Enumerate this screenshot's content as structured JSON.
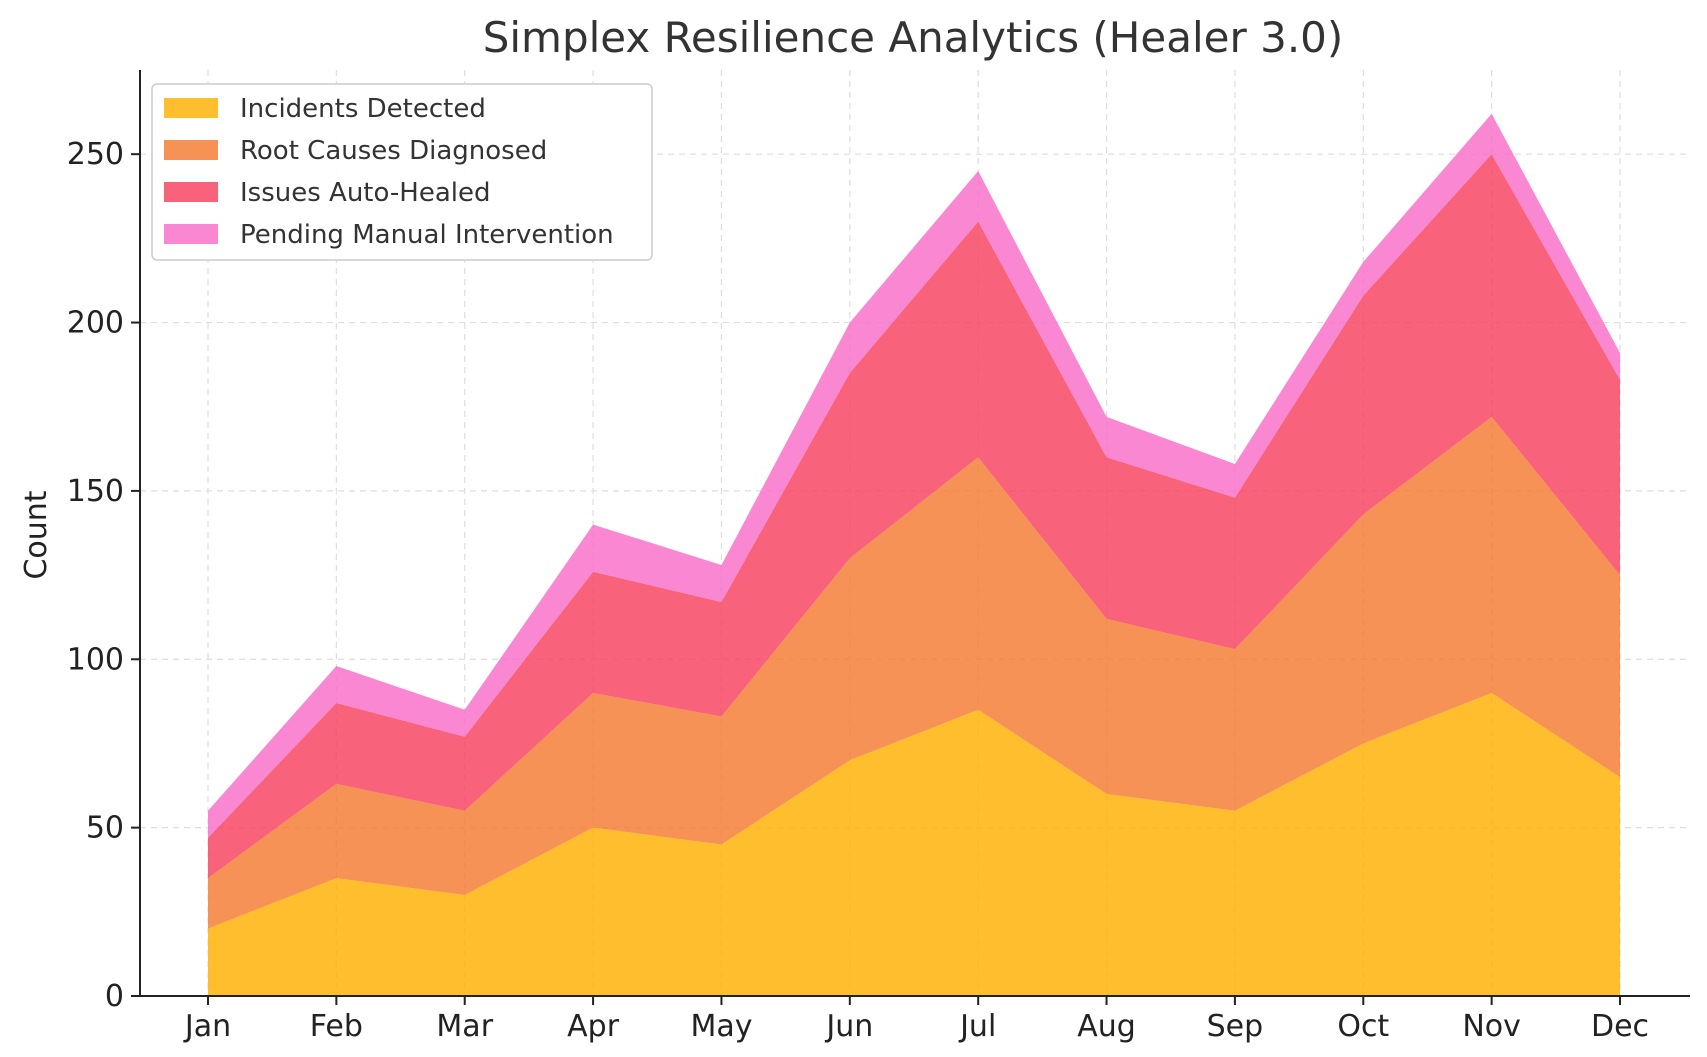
{
  "chart_data": {
    "type": "area",
    "stacked": true,
    "title": "Simplex Resilience Analytics (Healer 3.0)",
    "xlabel": "",
    "ylabel": "Count",
    "categories": [
      "Jan",
      "Feb",
      "Mar",
      "Apr",
      "May",
      "Jun",
      "Jul",
      "Aug",
      "Sep",
      "Oct",
      "Nov",
      "Dec"
    ],
    "ylim": [
      0,
      275
    ],
    "yticks": [
      0,
      50,
      100,
      150,
      200,
      250
    ],
    "grid": true,
    "legend_position": "top-left",
    "series": [
      {
        "name": "Incidents Detected",
        "color": "#FFB000",
        "values": [
          20,
          35,
          30,
          50,
          45,
          70,
          85,
          60,
          55,
          75,
          90,
          65
        ]
      },
      {
        "name": "Root Causes Diagnosed",
        "color": "#F47A30",
        "values": [
          15,
          28,
          25,
          40,
          38,
          60,
          75,
          52,
          48,
          68,
          82,
          60
        ]
      },
      {
        "name": "Issues Auto-Healed",
        "color": "#F7405E",
        "values": [
          12,
          24,
          22,
          36,
          34,
          55,
          70,
          48,
          45,
          65,
          78,
          58
        ]
      },
      {
        "name": "Pending Manual Intervention",
        "color": "#F96CC8",
        "values": [
          8,
          11,
          8,
          14,
          11,
          15,
          15,
          12,
          10,
          10,
          12,
          8
        ]
      }
    ]
  }
}
